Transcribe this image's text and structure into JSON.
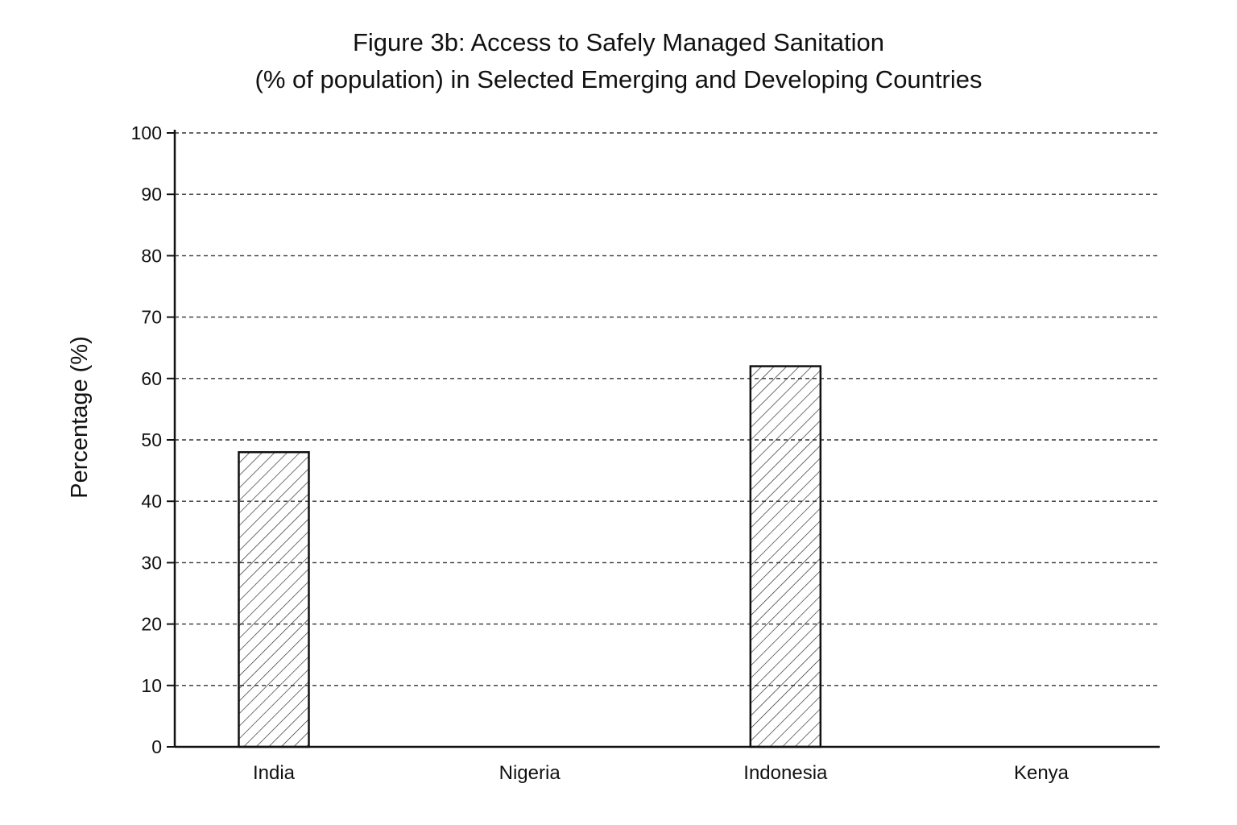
{
  "chart_data": {
    "type": "bar",
    "title": "Figure 3b: Access to Safely Managed Sanitation",
    "subtitle": "(% of population) in Selected Emerging and Developing Countries",
    "xlabel": "",
    "ylabel": "Percentage (%)",
    "ylim": [
      0,
      100
    ],
    "yticks": [
      0,
      10,
      20,
      30,
      40,
      50,
      60,
      70,
      80,
      90,
      100
    ],
    "categories": [
      "India",
      "Nigeria",
      "Indonesia",
      "Kenya"
    ],
    "values": [
      48,
      null,
      62,
      null
    ],
    "grid": true,
    "grid_style": "dashed",
    "bar_fill": "diagonal-hatch",
    "colors": {
      "bar_stroke": "#111111",
      "hatch": "#222222",
      "grid": "#333333",
      "axis": "#111111"
    }
  }
}
